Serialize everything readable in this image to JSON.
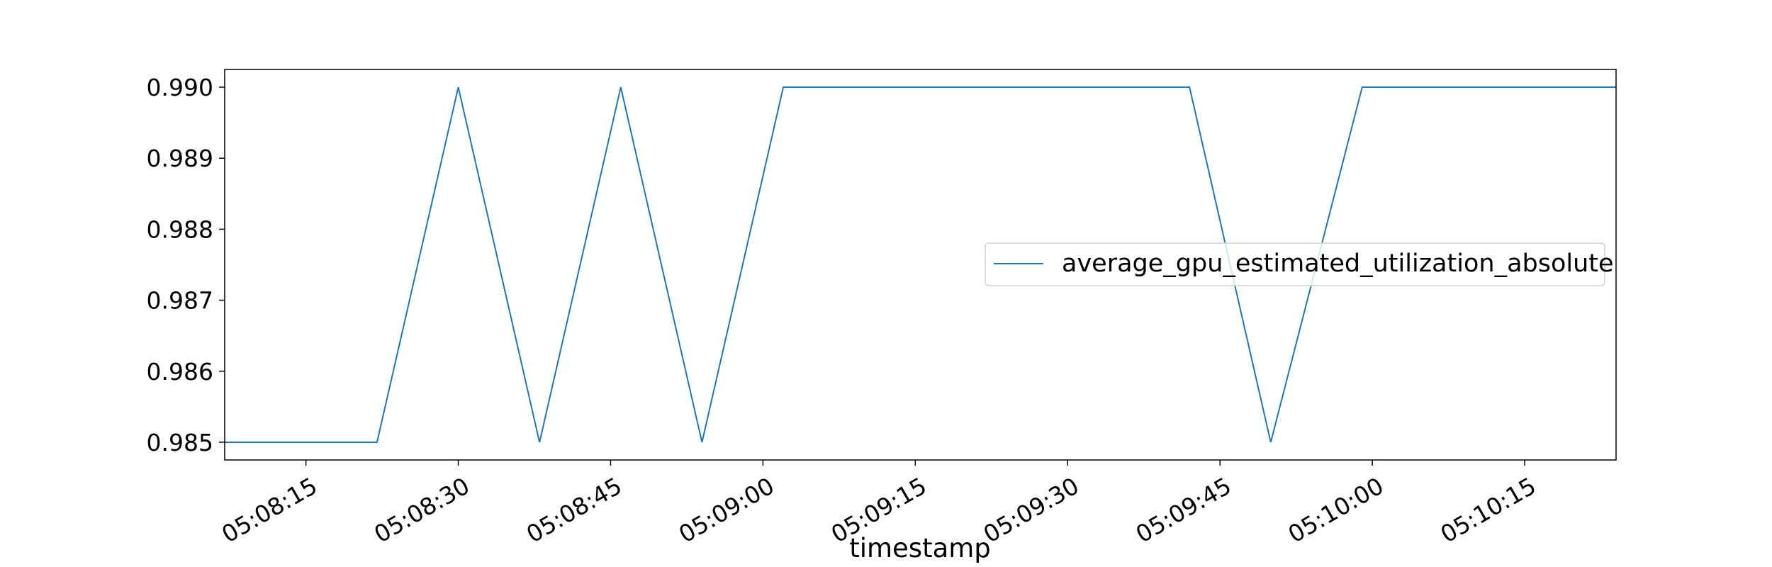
{
  "chart_data": {
    "type": "line",
    "xlabel": "timestamp",
    "ylabel": "",
    "xlim": [
      "05:08:07",
      "05:10:24"
    ],
    "ylim": [
      0.98475,
      0.99025
    ],
    "xticks": [
      "05:08:15",
      "05:08:30",
      "05:08:45",
      "05:09:00",
      "05:09:15",
      "05:09:30",
      "05:09:45",
      "05:10:00",
      "05:10:15"
    ],
    "yticks": [
      "0.985",
      "0.986",
      "0.987",
      "0.988",
      "0.989",
      "0.990"
    ],
    "grid": false,
    "legend_position": "center-right",
    "series": [
      {
        "name": "average_gpu_estimated_utilization_absolute",
        "color": "#1f77b4",
        "points": [
          {
            "x": "05:08:07",
            "y": 0.985
          },
          {
            "x": "05:08:22",
            "y": 0.985
          },
          {
            "x": "05:08:30",
            "y": 0.99
          },
          {
            "x": "05:08:38",
            "y": 0.985
          },
          {
            "x": "05:08:46",
            "y": 0.99
          },
          {
            "x": "05:08:54",
            "y": 0.985
          },
          {
            "x": "05:09:02",
            "y": 0.99
          },
          {
            "x": "05:09:42",
            "y": 0.99
          },
          {
            "x": "05:09:50",
            "y": 0.985
          },
          {
            "x": "05:09:59",
            "y": 0.99
          },
          {
            "x": "05:10:24",
            "y": 0.99
          }
        ]
      }
    ]
  }
}
